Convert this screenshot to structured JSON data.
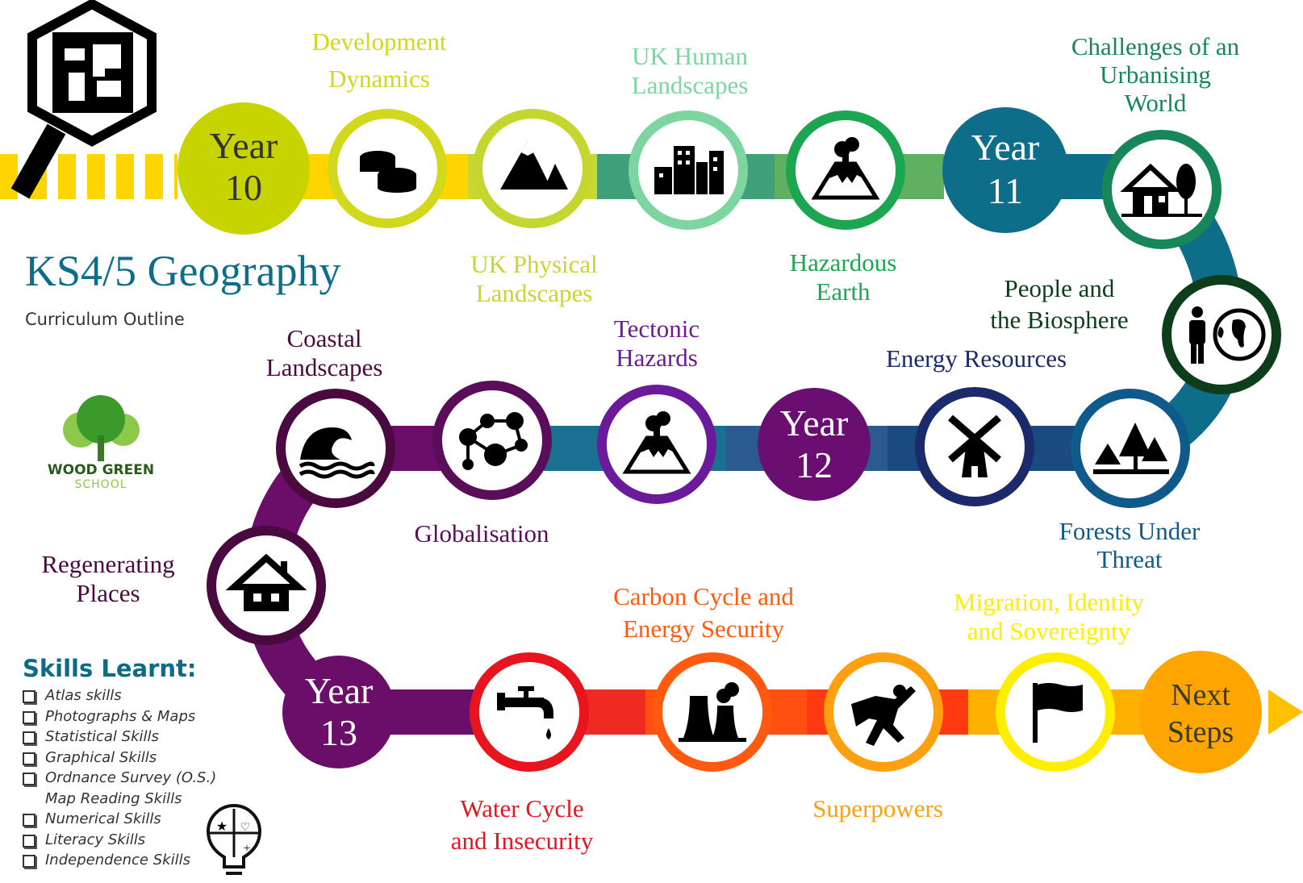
{
  "header": {
    "title": "KS4/5 Geography",
    "subtitle": "Curriculum Outline"
  },
  "school_logo": {
    "text_line1": "WOOD GREEN",
    "text_line2": "SCHOOL",
    "icon": "tree-icon"
  },
  "years": {
    "y10": [
      "Year",
      "10"
    ],
    "y11": [
      "Year",
      "11"
    ],
    "y12": [
      "Year",
      "12"
    ],
    "y13": [
      "Year",
      "13"
    ],
    "next": [
      "Next",
      "Steps"
    ]
  },
  "topics": {
    "development": {
      "lines": [
        "Development",
        "Dynamics"
      ],
      "icon": "coins-icon",
      "color": "#d2d81c"
    },
    "uk_physical": {
      "lines": [
        "UK Physical",
        "Landscapes"
      ],
      "icon": "mountain-icon",
      "color": "#c6d631"
    },
    "uk_human": {
      "lines": [
        "UK Human",
        "Landscapes"
      ],
      "icon": "buildings-icon",
      "color": "#7dd6a0"
    },
    "hazardous": {
      "lines": [
        "Hazardous",
        "Earth"
      ],
      "icon": "volcano-icon",
      "color": "#1da651"
    },
    "challenges": {
      "lines": [
        "Challenges of an",
        "Urbanising",
        "World"
      ],
      "icon": "house-tree-icon",
      "color": "#17875a"
    },
    "biosphere": {
      "lines": [
        "People and",
        "the Biosphere"
      ],
      "icon": "person-globe-icon",
      "color": "#0d3d1a"
    },
    "forests": {
      "lines": [
        "Forests Under",
        "Threat"
      ],
      "icon": "forest-icon",
      "color": "#0e5a8a"
    },
    "energy": {
      "lines": [
        "Energy Resources"
      ],
      "icon": "windmill-icon",
      "color": "#1a2a6a"
    },
    "tectonic": {
      "lines": [
        "Tectonic",
        "Hazards"
      ],
      "icon": "volcano-icon",
      "color": "#6a1a9a"
    },
    "globalisation": {
      "lines": [
        "Globalisation"
      ],
      "icon": "network-icon",
      "color": "#5a0e5a"
    },
    "coastal": {
      "lines": [
        "Coastal",
        "Landscapes"
      ],
      "icon": "wave-icon",
      "color": "#4a0a40"
    },
    "regenerating": {
      "lines": [
        "Regenerating",
        "Places"
      ],
      "icon": "house-icon",
      "color": "#4a0a40"
    },
    "water": {
      "lines": [
        "Water Cycle",
        "and Insecurity"
      ],
      "icon": "tap-icon",
      "color": "#e8141e"
    },
    "carbon": {
      "lines": [
        "Carbon Cycle and",
        "Energy Security"
      ],
      "icon": "factory-icon",
      "color": "#ff5a10"
    },
    "superpowers": {
      "lines": [
        "Superpowers"
      ],
      "icon": "superhero-icon",
      "color": "#ffa010"
    },
    "migration": {
      "lines": [
        "Migration, Identity",
        "and Sovereignty"
      ],
      "icon": "flag-icon",
      "color": "#ffee00"
    }
  },
  "skills": {
    "heading": "Skills Learnt:",
    "items": [
      "Atlas skills",
      "Photographs & Maps",
      "Statistical Skills",
      "Graphical Skills",
      "Ordnance Survey (O.S.) Map Reading Skills",
      "Numerical Skills",
      "Literacy Skills",
      "Independence Skills"
    ]
  }
}
